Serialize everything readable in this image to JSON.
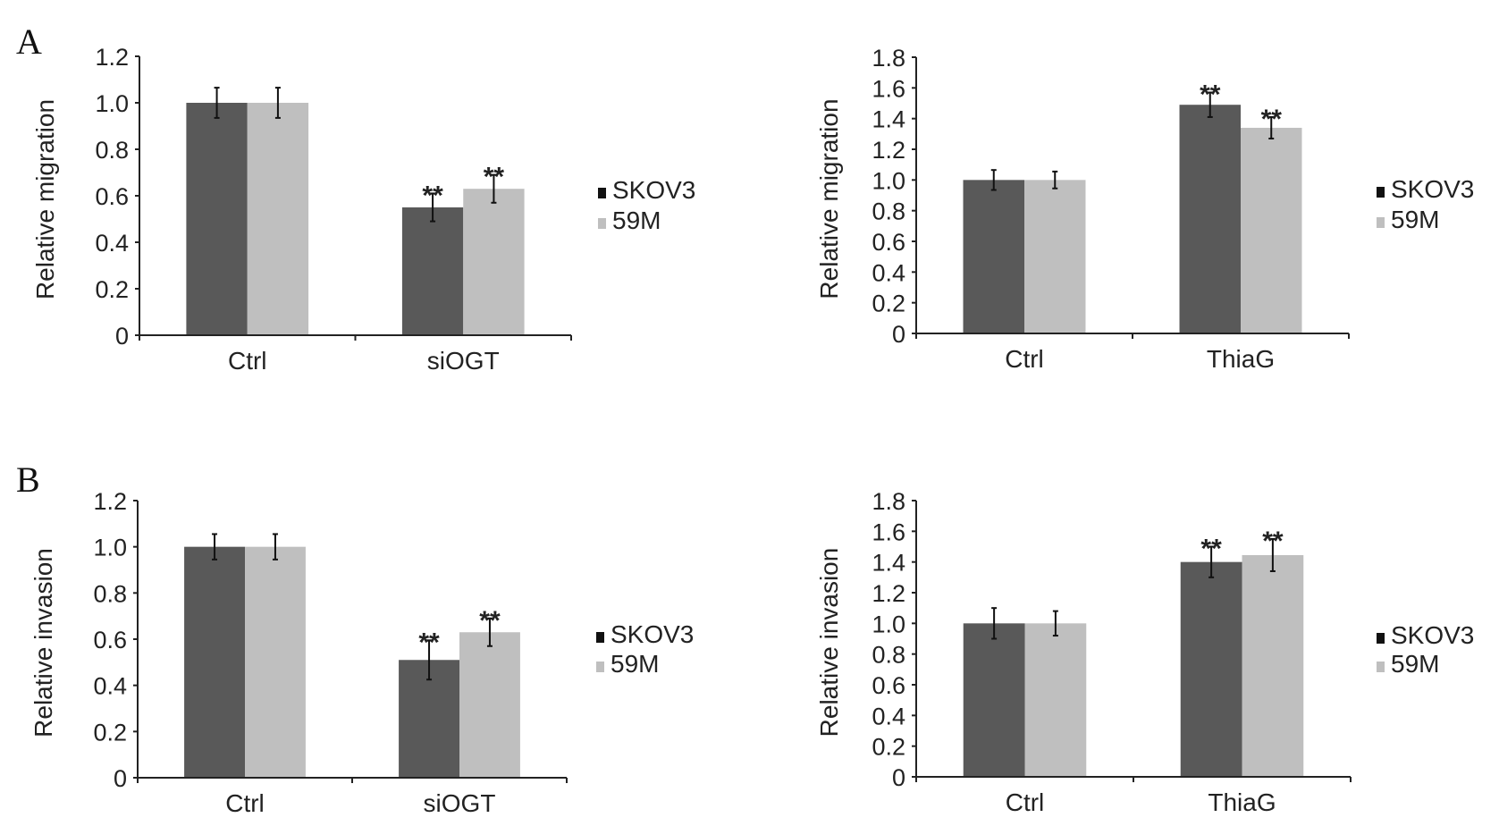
{
  "colors": {
    "SKOV3": "#595959",
    "59M": "#bfbfbf"
  },
  "chart_data": [
    {
      "panel": "A",
      "type": "bar",
      "title": "",
      "xlabel": "",
      "ylabel": "Relative migration",
      "categories": [
        "Ctrl",
        "siOGT"
      ],
      "ylim": [
        0,
        1.2
      ],
      "yticks": [
        "0",
        "0.2",
        "0.4",
        "0.6",
        "0.8",
        "1.0",
        "1.2"
      ],
      "series": [
        {
          "name": "SKOV3",
          "values": [
            1.0,
            0.55
          ],
          "errors": [
            0.065,
            0.06
          ],
          "significance": [
            "",
            "**"
          ]
        },
        {
          "name": "59M",
          "values": [
            1.0,
            0.63
          ],
          "errors": [
            0.065,
            0.06
          ],
          "significance": [
            "",
            "**"
          ]
        }
      ],
      "legend": [
        "SKOV3",
        "59M"
      ],
      "legend_position": "right"
    },
    {
      "panel": "",
      "type": "bar",
      "title": "",
      "xlabel": "",
      "ylabel": "Relative migration",
      "categories": [
        "Ctrl",
        "ThiaG"
      ],
      "ylim": [
        0,
        1.8
      ],
      "yticks": [
        "0",
        "0.2",
        "0.4",
        "0.6",
        "0.8",
        "1.0",
        "1.2",
        "1.4",
        "1.6",
        "1.8"
      ],
      "series": [
        {
          "name": "SKOV3",
          "values": [
            1.0,
            1.49
          ],
          "errors": [
            0.065,
            0.08
          ],
          "significance": [
            "",
            "**"
          ]
        },
        {
          "name": "59M",
          "values": [
            1.0,
            1.34
          ],
          "errors": [
            0.055,
            0.07
          ],
          "significance": [
            "",
            "**"
          ]
        }
      ],
      "legend": [
        "SKOV3",
        "59M"
      ],
      "legend_position": "right"
    },
    {
      "panel": "B",
      "type": "bar",
      "title": "",
      "xlabel": "",
      "ylabel": "Relative invasion",
      "categories": [
        "Ctrl",
        "siOGT"
      ],
      "ylim": [
        0,
        1.2
      ],
      "yticks": [
        "0",
        "0.2",
        "0.4",
        "0.6",
        "0.8",
        "1.0",
        "1.2"
      ],
      "series": [
        {
          "name": "SKOV3",
          "values": [
            1.0,
            0.51
          ],
          "errors": [
            0.055,
            0.085
          ],
          "significance": [
            "",
            "**"
          ]
        },
        {
          "name": "59M",
          "values": [
            1.0,
            0.63
          ],
          "errors": [
            0.055,
            0.06
          ],
          "significance": [
            "",
            "**"
          ]
        }
      ],
      "legend": [
        "SKOV3",
        "59M"
      ],
      "legend_position": "right"
    },
    {
      "panel": "",
      "type": "bar",
      "title": "",
      "xlabel": "",
      "ylabel": "Relative invasion",
      "categories": [
        "Ctrl",
        "ThiaG"
      ],
      "ylim": [
        0,
        1.8
      ],
      "yticks": [
        "0",
        "0.2",
        "0.4",
        "0.6",
        "0.8",
        "1.0",
        "1.2",
        "1.4",
        "1.6",
        "1.8"
      ],
      "series": [
        {
          "name": "SKOV3",
          "values": [
            1.0,
            1.4
          ],
          "errors": [
            0.1,
            0.1
          ],
          "significance": [
            "",
            "**"
          ]
        },
        {
          "name": "59M",
          "values": [
            1.0,
            1.445
          ],
          "errors": [
            0.08,
            0.105
          ],
          "significance": [
            "",
            "**"
          ]
        }
      ],
      "legend": [
        "SKOV3",
        "59M"
      ],
      "legend_position": "right"
    }
  ]
}
